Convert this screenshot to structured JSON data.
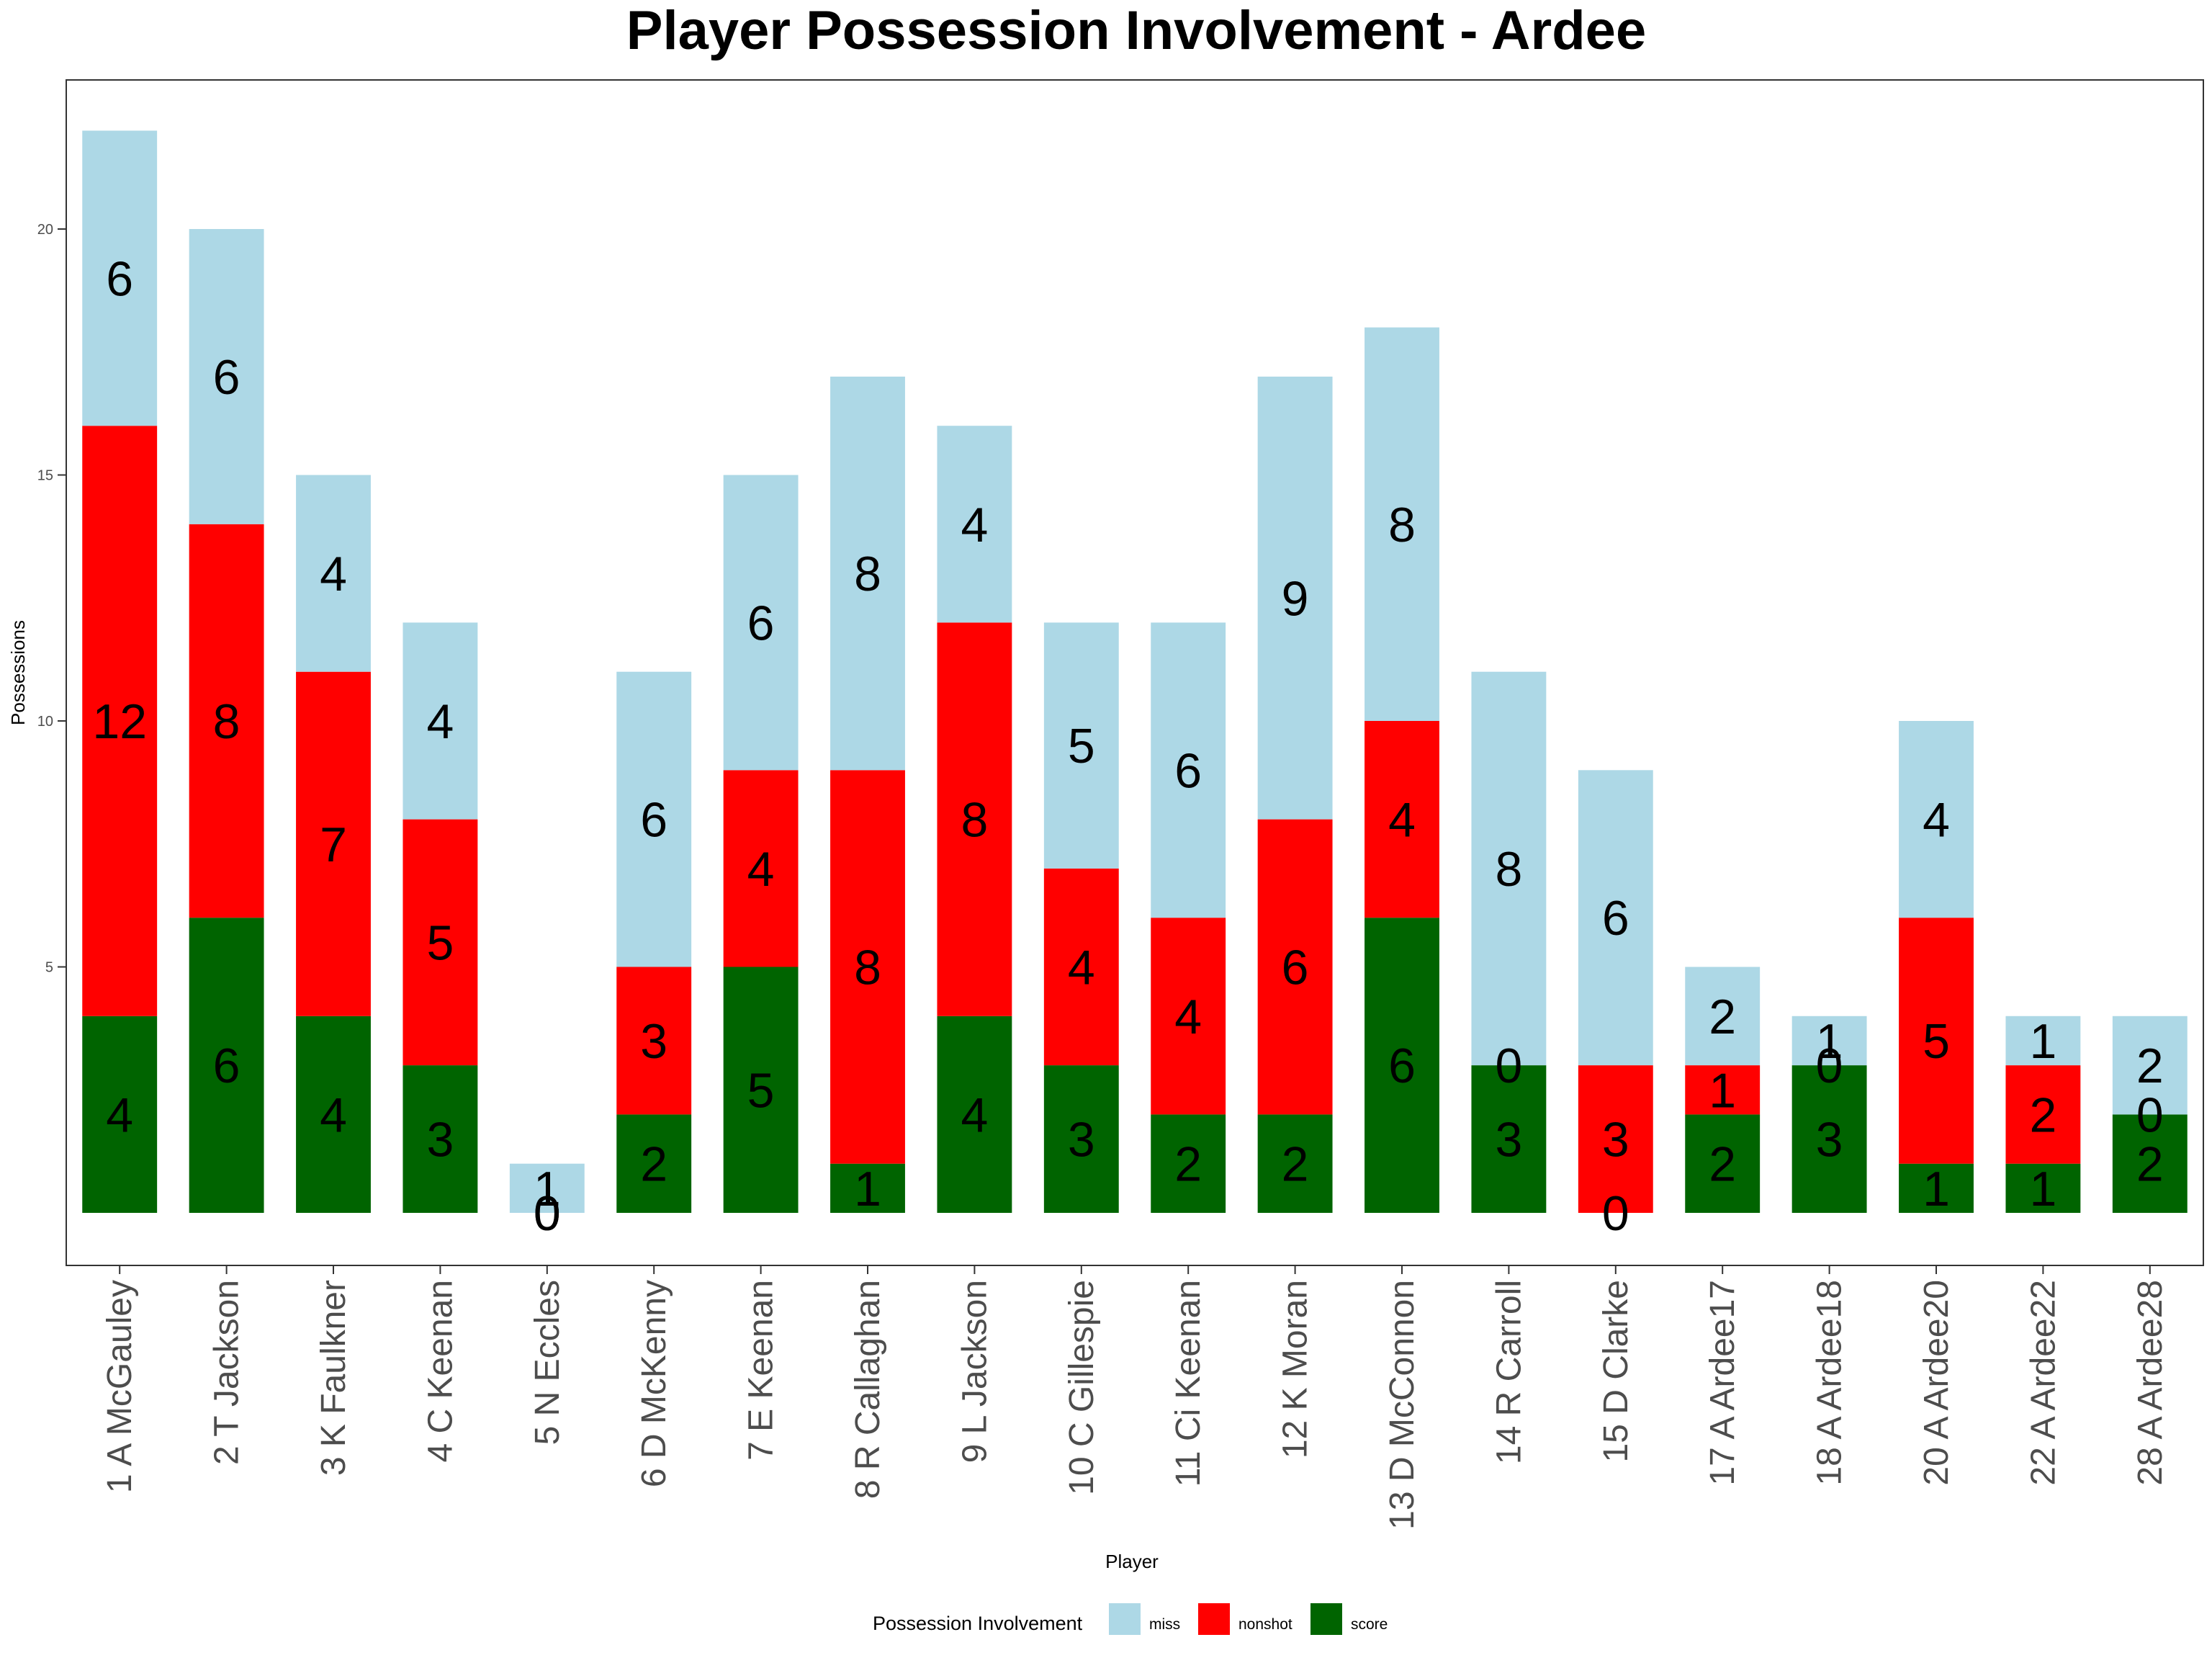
{
  "chart_data": {
    "type": "bar",
    "stacked": true,
    "title": "Player Possession Involvement - Ardee",
    "xlabel": "Player",
    "ylabel": "Possessions",
    "ylim": [
      0,
      23
    ],
    "y_ticks": [
      5,
      10,
      15,
      20
    ],
    "grid": false,
    "legend_position": "bottom",
    "legend_title": "Possession Involvement",
    "categories": [
      "1 A McGauley",
      "2 T Jackson",
      "3 K Faulkner",
      "4 C Keenan",
      "5 N Eccles",
      "6 D McKenny",
      "7 E Keenan",
      "8 R Callaghan",
      "9 L Jackson",
      "10 C Gillespie",
      "11 Ci Keenan",
      "12 K Moran",
      "13 D McConnon",
      "14 R Carroll",
      "15 D Clarke",
      "17 A Ardee17",
      "18 A Ardee18",
      "20 A Ardee20",
      "22 A Ardee22",
      "28 A Ardee28"
    ],
    "series": [
      {
        "name": "score",
        "color": "#006400",
        "values": [
          4,
          6,
          4,
          3,
          0,
          2,
          5,
          1,
          4,
          3,
          2,
          2,
          6,
          3,
          0,
          2,
          3,
          1,
          1,
          2
        ]
      },
      {
        "name": "nonshot",
        "color": "#ff0000",
        "values": [
          12,
          8,
          7,
          5,
          0,
          3,
          4,
          8,
          8,
          4,
          4,
          6,
          4,
          0,
          3,
          1,
          0,
          5,
          2,
          0
        ]
      },
      {
        "name": "miss",
        "color": "#add8e6",
        "values": [
          6,
          6,
          4,
          4,
          1,
          6,
          6,
          8,
          4,
          5,
          6,
          9,
          8,
          8,
          6,
          2,
          1,
          4,
          1,
          2
        ]
      }
    ],
    "legend_order": [
      "miss",
      "nonshot",
      "score"
    ]
  }
}
